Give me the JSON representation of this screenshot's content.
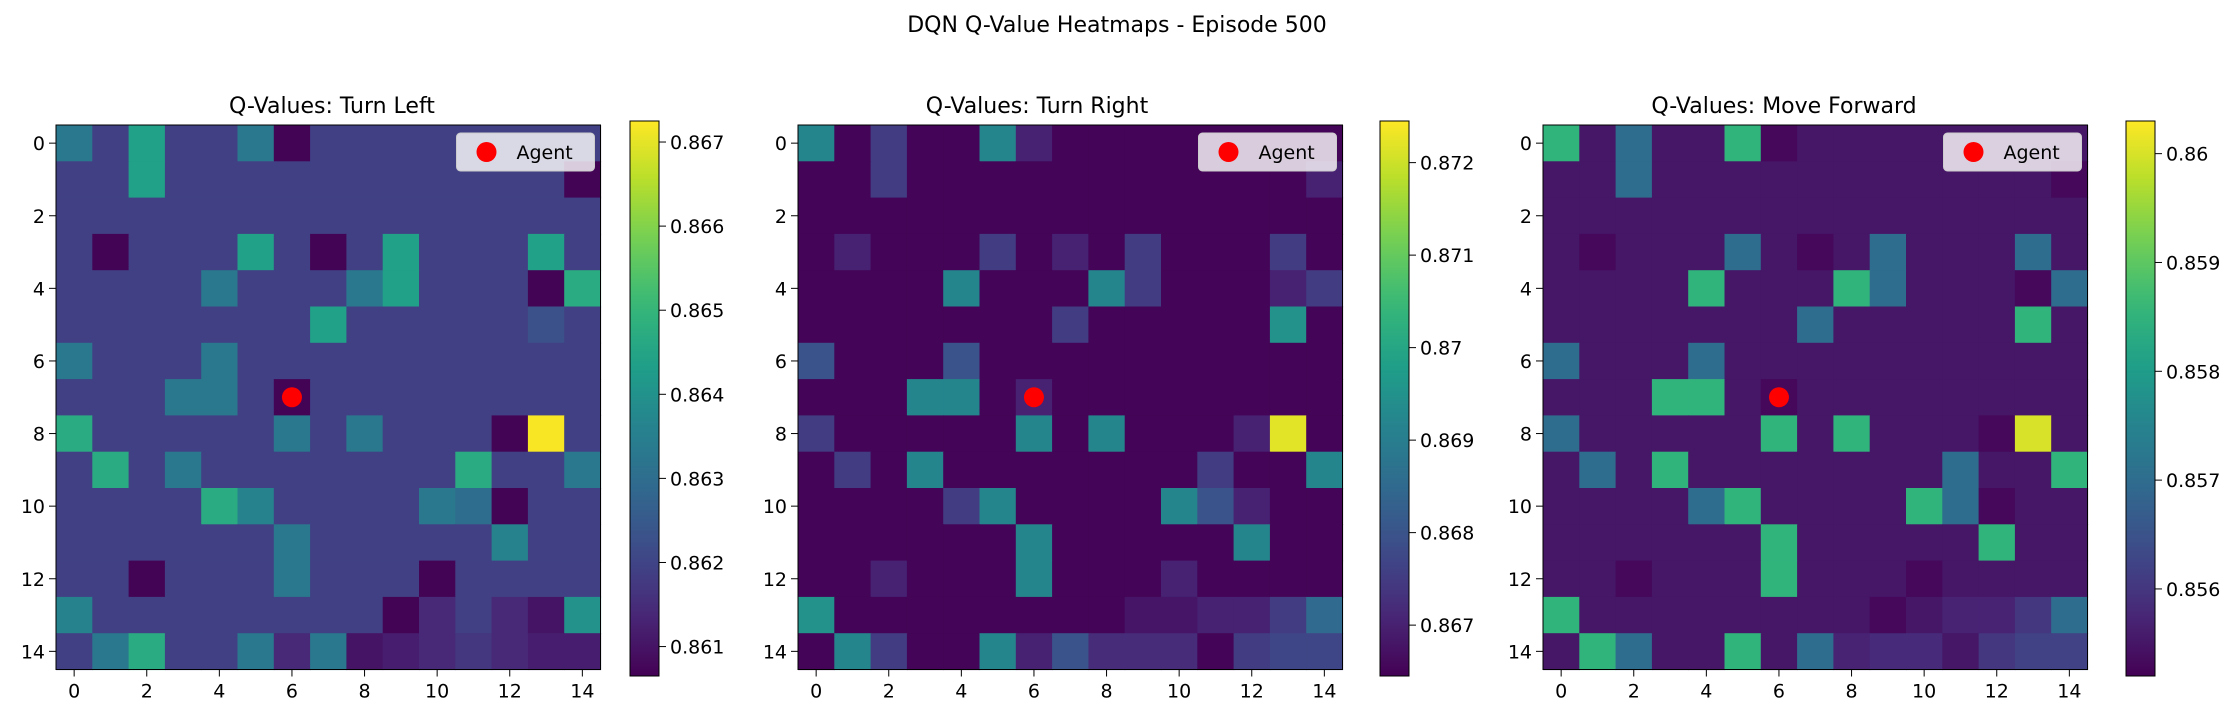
{
  "figure": {
    "title": "DQN Q-Value Heatmaps - Episode 500"
  },
  "chart_data": [
    {
      "type": "heatmap",
      "title": "Q-Values: Turn Left",
      "xticks": [
        0,
        2,
        4,
        6,
        8,
        10,
        12,
        14
      ],
      "yticks": [
        0,
        2,
        4,
        6,
        8,
        10,
        12,
        14
      ],
      "colormap": "viridis",
      "vmin": 0.86065,
      "vmax": 0.86725,
      "colorbar_ticks": [
        0.861,
        0.862,
        0.863,
        0.864,
        0.865,
        0.866,
        0.867
      ],
      "base_value": 0.8619,
      "cells": [
        [
          0,
          0,
          0.8633
        ],
        [
          0,
          2,
          0.8644
        ],
        [
          0,
          5,
          0.8633
        ],
        [
          0,
          6,
          0.8607
        ],
        [
          1,
          2,
          0.8644
        ],
        [
          1,
          14,
          0.8607
        ],
        [
          3,
          1,
          0.8607
        ],
        [
          3,
          5,
          0.8644
        ],
        [
          3,
          7,
          0.8607
        ],
        [
          3,
          9,
          0.8644
        ],
        [
          3,
          13,
          0.8644
        ],
        [
          4,
          4,
          0.8633
        ],
        [
          4,
          8,
          0.8633
        ],
        [
          4,
          9,
          0.8644
        ],
        [
          4,
          13,
          0.8607
        ],
        [
          4,
          14,
          0.8647
        ],
        [
          5,
          7,
          0.8644
        ],
        [
          5,
          13,
          0.8623
        ],
        [
          6,
          0,
          0.8633
        ],
        [
          6,
          4,
          0.8633
        ],
        [
          7,
          3,
          0.8633
        ],
        [
          7,
          4,
          0.8633
        ],
        [
          7,
          6,
          0.8607
        ],
        [
          8,
          0,
          0.8647
        ],
        [
          8,
          6,
          0.8633
        ],
        [
          8,
          8,
          0.8633
        ],
        [
          8,
          12,
          0.8607
        ],
        [
          8,
          13,
          0.8672
        ],
        [
          9,
          1,
          0.8647
        ],
        [
          9,
          3,
          0.8633
        ],
        [
          9,
          11,
          0.8647
        ],
        [
          9,
          14,
          0.8633
        ],
        [
          10,
          4,
          0.8647
        ],
        [
          10,
          5,
          0.8636
        ],
        [
          10,
          10,
          0.8633
        ],
        [
          10,
          11,
          0.863
        ],
        [
          10,
          12,
          0.8607
        ],
        [
          11,
          6,
          0.8633
        ],
        [
          11,
          12,
          0.8636
        ],
        [
          12,
          2,
          0.8607
        ],
        [
          12,
          6,
          0.8633
        ],
        [
          12,
          10,
          0.8607
        ],
        [
          13,
          0,
          0.8636
        ],
        [
          13,
          9,
          0.8607
        ],
        [
          13,
          10,
          0.8614
        ],
        [
          13,
          12,
          0.8614
        ],
        [
          13,
          13,
          0.861
        ],
        [
          13,
          14,
          0.864
        ],
        [
          14,
          1,
          0.8633
        ],
        [
          14,
          2,
          0.8647
        ],
        [
          14,
          5,
          0.8633
        ],
        [
          14,
          6,
          0.8614
        ],
        [
          14,
          7,
          0.8633
        ],
        [
          14,
          8,
          0.861
        ],
        [
          14,
          9,
          0.8612
        ],
        [
          14,
          10,
          0.8614
        ],
        [
          14,
          11,
          0.8617
        ],
        [
          14,
          12,
          0.8614
        ],
        [
          14,
          13,
          0.8612
        ],
        [
          14,
          14,
          0.8612
        ]
      ],
      "agent": {
        "x": 6,
        "y": 7
      },
      "legend": {
        "label": "Agent",
        "position": "upper right"
      }
    },
    {
      "type": "heatmap",
      "title": "Q-Values: Turn Right",
      "xticks": [
        0,
        2,
        4,
        6,
        8,
        10,
        12,
        14
      ],
      "yticks": [
        0,
        2,
        4,
        6,
        8,
        10,
        12,
        14
      ],
      "colormap": "viridis",
      "vmin": 0.86645,
      "vmax": 0.87245,
      "colorbar_ticks": [
        0.867,
        0.868,
        0.869,
        0.87,
        0.871,
        0.872
      ],
      "base_value": 0.8665,
      "cells": [
        [
          0,
          0,
          0.8692
        ],
        [
          0,
          2,
          0.8675
        ],
        [
          0,
          5,
          0.8692
        ],
        [
          0,
          6,
          0.867
        ],
        [
          1,
          2,
          0.8675
        ],
        [
          1,
          14,
          0.867
        ],
        [
          3,
          1,
          0.867
        ],
        [
          3,
          5,
          0.8675
        ],
        [
          3,
          7,
          0.867
        ],
        [
          3,
          9,
          0.8675
        ],
        [
          3,
          13,
          0.8675
        ],
        [
          4,
          4,
          0.8692
        ],
        [
          4,
          8,
          0.8692
        ],
        [
          4,
          9,
          0.8675
        ],
        [
          4,
          13,
          0.867
        ],
        [
          4,
          14,
          0.8675
        ],
        [
          5,
          7,
          0.8675
        ],
        [
          5,
          13,
          0.8695
        ],
        [
          6,
          0,
          0.868
        ],
        [
          6,
          4,
          0.868
        ],
        [
          7,
          3,
          0.8692
        ],
        [
          7,
          4,
          0.8692
        ],
        [
          7,
          6,
          0.867
        ],
        [
          8,
          0,
          0.8675
        ],
        [
          8,
          6,
          0.8692
        ],
        [
          8,
          8,
          0.8692
        ],
        [
          8,
          12,
          0.867
        ],
        [
          8,
          13,
          0.8722
        ],
        [
          9,
          1,
          0.8675
        ],
        [
          9,
          3,
          0.8692
        ],
        [
          9,
          11,
          0.8675
        ],
        [
          9,
          14,
          0.8692
        ],
        [
          10,
          4,
          0.8675
        ],
        [
          10,
          5,
          0.8692
        ],
        [
          10,
          10,
          0.8692
        ],
        [
          10,
          11,
          0.868
        ],
        [
          10,
          12,
          0.867
        ],
        [
          11,
          6,
          0.8692
        ],
        [
          11,
          12,
          0.8692
        ],
        [
          12,
          2,
          0.867
        ],
        [
          12,
          6,
          0.8692
        ],
        [
          12,
          10,
          0.867
        ],
        [
          13,
          0,
          0.8695
        ],
        [
          13,
          9,
          0.8668
        ],
        [
          13,
          10,
          0.8668
        ],
        [
          13,
          11,
          0.867
        ],
        [
          13,
          12,
          0.867
        ],
        [
          13,
          13,
          0.8675
        ],
        [
          13,
          14,
          0.8685
        ],
        [
          14,
          1,
          0.8692
        ],
        [
          14,
          2,
          0.8675
        ],
        [
          14,
          5,
          0.8692
        ],
        [
          14,
          6,
          0.867
        ],
        [
          14,
          7,
          0.868
        ],
        [
          14,
          8,
          0.8672
        ],
        [
          14,
          9,
          0.8672
        ],
        [
          14,
          10,
          0.8672
        ],
        [
          14,
          12,
          0.8675
        ],
        [
          14,
          13,
          0.8677
        ],
        [
          14,
          14,
          0.8677
        ]
      ],
      "agent": {
        "x": 6,
        "y": 7
      },
      "legend": {
        "label": "Agent",
        "position": "upper right"
      }
    },
    {
      "type": "heatmap",
      "title": "Q-Values: Move Forward",
      "xticks": [
        0,
        2,
        4,
        6,
        8,
        10,
        12,
        14
      ],
      "yticks": [
        0,
        2,
        4,
        6,
        8,
        10,
        12,
        14
      ],
      "colormap": "viridis",
      "vmin": 0.8552,
      "vmax": 0.8603,
      "colorbar_ticks": [
        0.856,
        0.857,
        0.858,
        0.859,
        0.86
      ],
      "base_value": 0.8555,
      "cells": [
        [
          0,
          0,
          0.8585
        ],
        [
          0,
          2,
          0.857
        ],
        [
          0,
          5,
          0.8585
        ],
        [
          0,
          6,
          0.8553
        ],
        [
          1,
          2,
          0.857
        ],
        [
          1,
          14,
          0.8553
        ],
        [
          3,
          1,
          0.8553
        ],
        [
          3,
          5,
          0.857
        ],
        [
          3,
          7,
          0.8553
        ],
        [
          3,
          9,
          0.857
        ],
        [
          3,
          13,
          0.857
        ],
        [
          4,
          4,
          0.8585
        ],
        [
          4,
          8,
          0.8585
        ],
        [
          4,
          9,
          0.857
        ],
        [
          4,
          13,
          0.8553
        ],
        [
          4,
          14,
          0.857
        ],
        [
          5,
          7,
          0.857
        ],
        [
          5,
          13,
          0.8585
        ],
        [
          6,
          0,
          0.857
        ],
        [
          6,
          4,
          0.857
        ],
        [
          7,
          3,
          0.8585
        ],
        [
          7,
          4,
          0.8585
        ],
        [
          7,
          6,
          0.8553
        ],
        [
          8,
          0,
          0.857
        ],
        [
          8,
          6,
          0.8585
        ],
        [
          8,
          8,
          0.8585
        ],
        [
          8,
          12,
          0.8553
        ],
        [
          8,
          13,
          0.86
        ],
        [
          9,
          1,
          0.857
        ],
        [
          9,
          3,
          0.8585
        ],
        [
          9,
          11,
          0.857
        ],
        [
          9,
          14,
          0.8585
        ],
        [
          10,
          4,
          0.857
        ],
        [
          10,
          5,
          0.8585
        ],
        [
          10,
          10,
          0.8585
        ],
        [
          10,
          11,
          0.857
        ],
        [
          10,
          12,
          0.8553
        ],
        [
          11,
          6,
          0.8585
        ],
        [
          11,
          12,
          0.8585
        ],
        [
          12,
          2,
          0.8553
        ],
        [
          12,
          6,
          0.8585
        ],
        [
          12,
          10,
          0.8553
        ],
        [
          13,
          0,
          0.8585
        ],
        [
          13,
          9,
          0.8553
        ],
        [
          13,
          10,
          0.8555
        ],
        [
          13,
          11,
          0.8557
        ],
        [
          13,
          12,
          0.8557
        ],
        [
          13,
          13,
          0.856
        ],
        [
          13,
          14,
          0.857
        ],
        [
          14,
          1,
          0.8585
        ],
        [
          14,
          2,
          0.857
        ],
        [
          14,
          5,
          0.8585
        ],
        [
          14,
          6,
          0.8555
        ],
        [
          14,
          7,
          0.857
        ],
        [
          14,
          8,
          0.8557
        ],
        [
          14,
          9,
          0.8558
        ],
        [
          14,
          10,
          0.8558
        ],
        [
          14,
          12,
          0.856
        ],
        [
          14,
          13,
          0.8562
        ],
        [
          14,
          14,
          0.8562
        ]
      ],
      "agent": {
        "x": 6,
        "y": 7
      },
      "legend": {
        "label": "Agent",
        "position": "upper right"
      }
    }
  ]
}
